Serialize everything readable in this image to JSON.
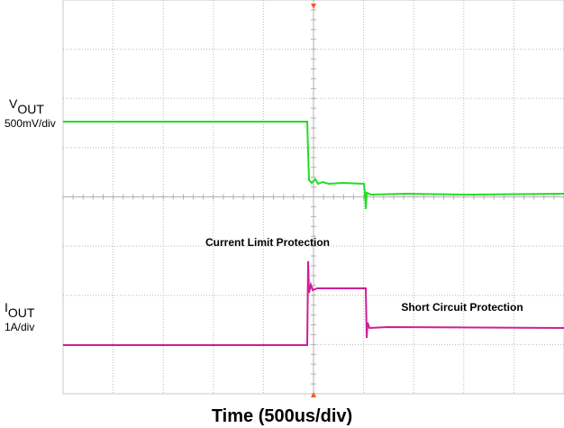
{
  "vout_label": {
    "main": "V",
    "sub": "OUT",
    "scale": "500mV/div"
  },
  "iout_label": {
    "main": "I",
    "sub": "OUT",
    "scale": "1A/div"
  },
  "annotations": [
    "Current Limit Protection",
    "Short Circuit Protection"
  ],
  "x_axis_label": "Time (500us/div)"
}
